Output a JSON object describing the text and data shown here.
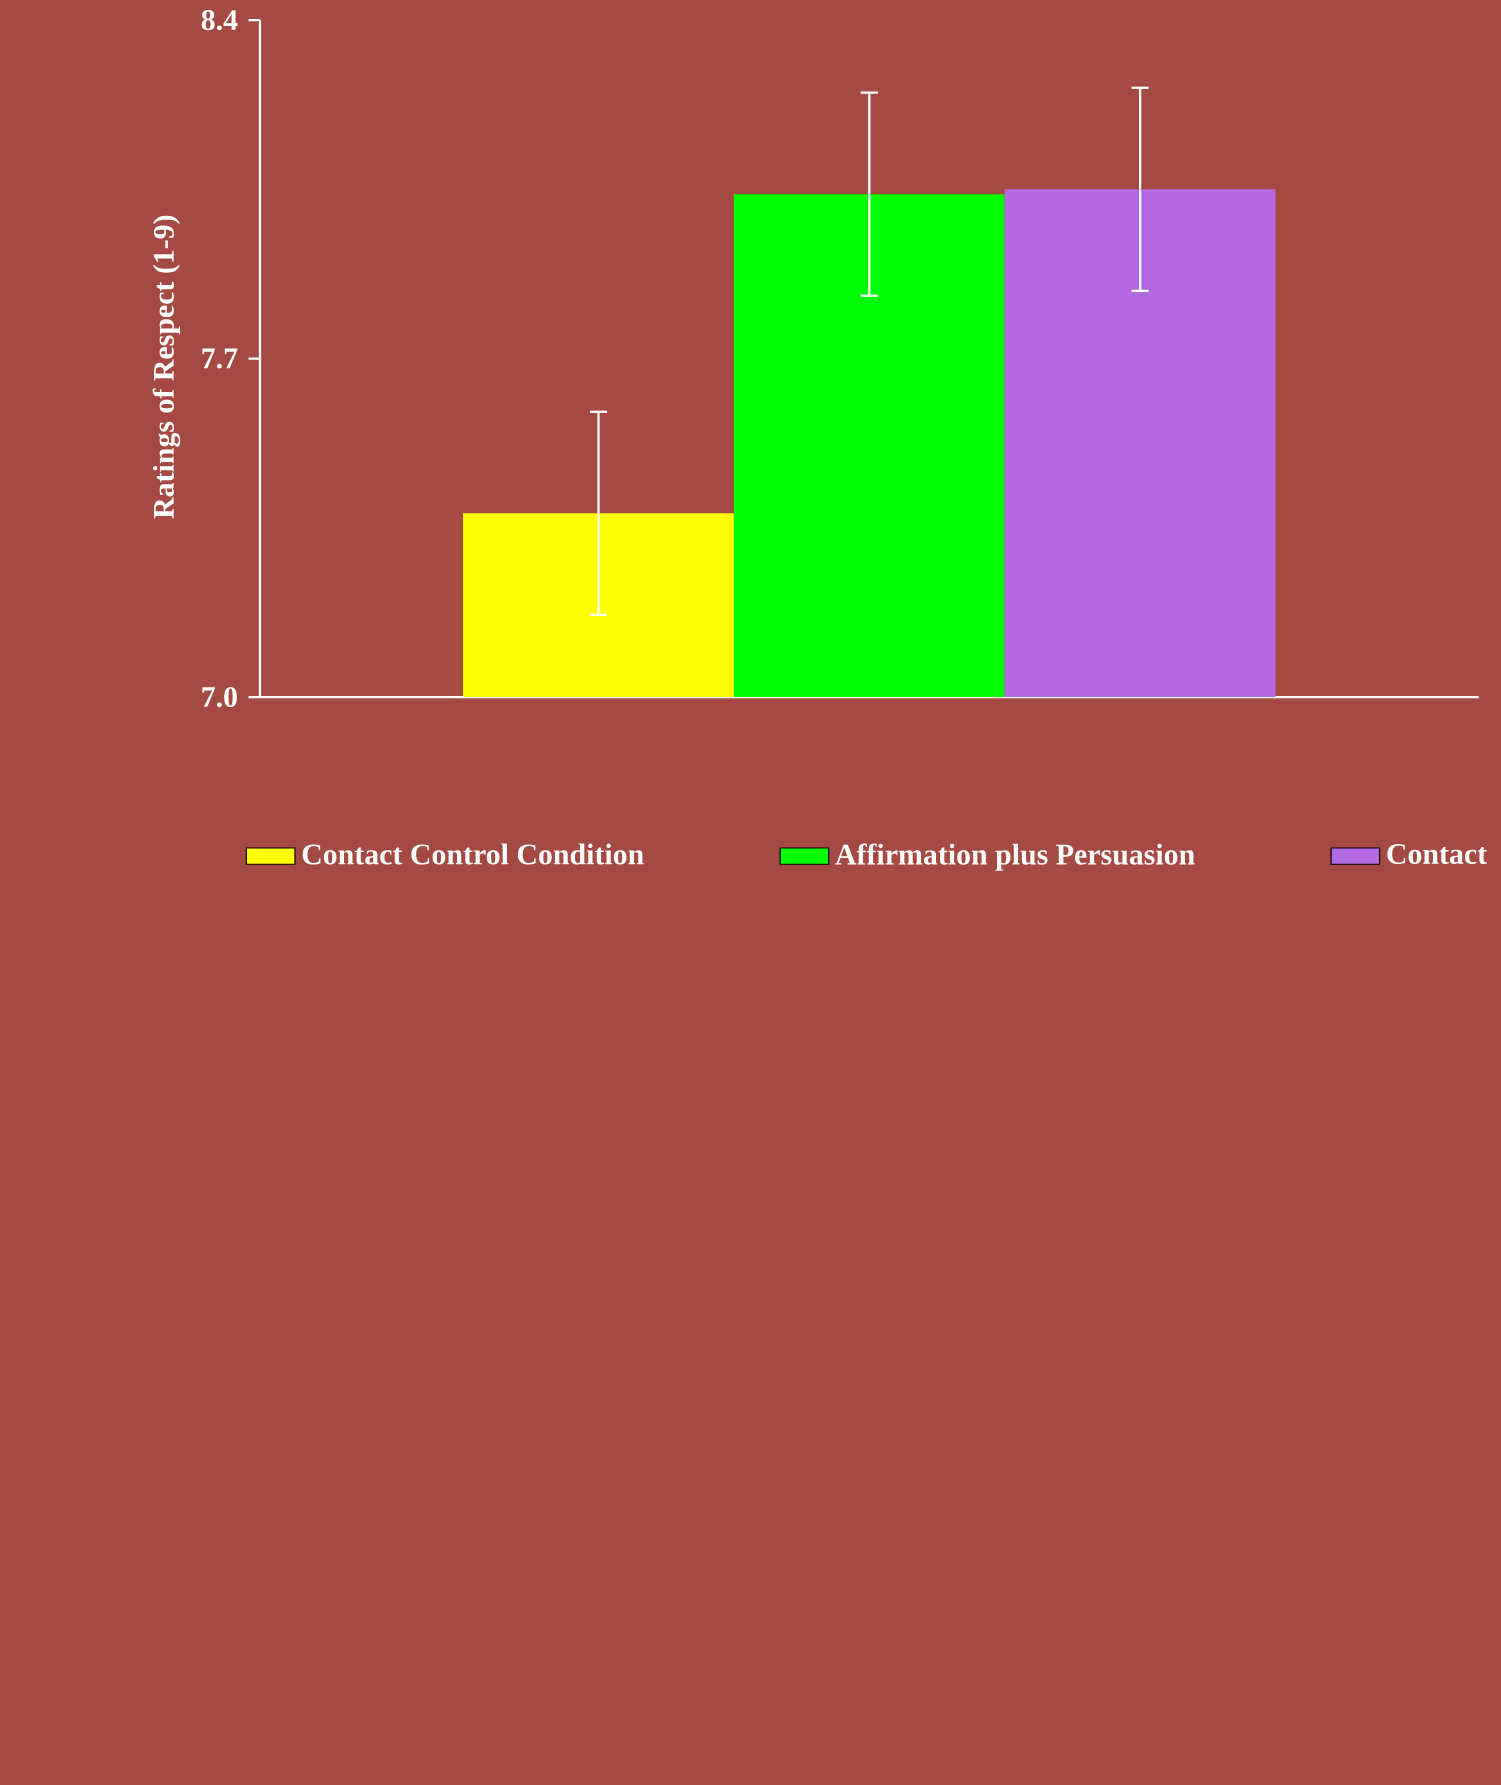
{
  "chart_data": {
    "type": "bar",
    "ylabel": "Ratings of Respect (1-9)",
    "categories": [
      null
    ],
    "series": [
      {
        "name": "Contact Control Condition",
        "color": "#ffff00",
        "values": [
          7.38
        ],
        "errors": [
          0.21
        ]
      },
      {
        "name": "Affirmation plus Persuasion",
        "color": "#00ff00",
        "values": [
          8.04
        ],
        "errors": [
          0.21
        ]
      },
      {
        "name": "Contact",
        "color": "#b36ae2",
        "values": [
          8.05
        ],
        "errors": [
          0.21
        ]
      }
    ],
    "ylim": [
      7.0,
      8.4
    ],
    "yticks": [
      {
        "value": 7.0,
        "label": "7.0"
      },
      {
        "value": 7.7,
        "label": "7.7"
      },
      {
        "value": 8.4,
        "label": "8.4"
      }
    ],
    "legend": "bottom"
  }
}
